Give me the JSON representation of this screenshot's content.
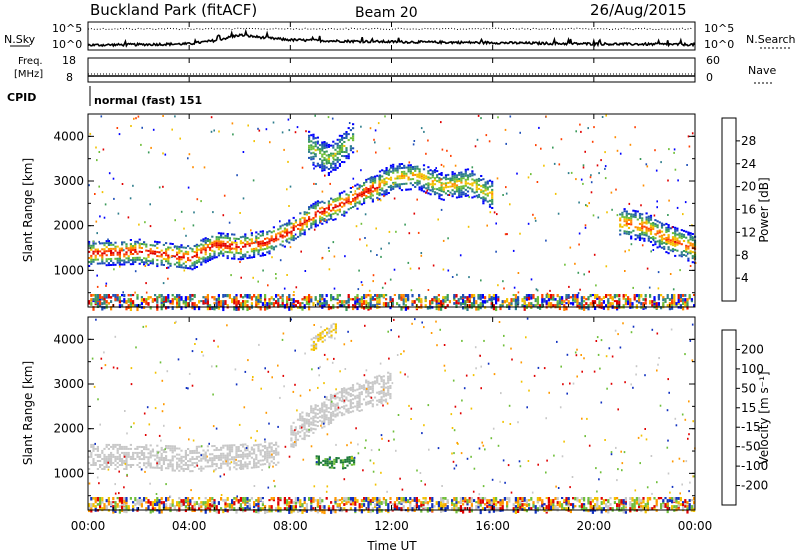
{
  "header": {
    "station": "Buckland Park (fitACF)",
    "beam": "Beam 20",
    "date": "26/Aug/2015"
  },
  "noise_panel": {
    "left_label": "N.Sky",
    "right_label": "N.Search",
    "left_ticks": [
      "10^5",
      "10^0"
    ],
    "right_ticks": [
      "10^5",
      "10^0"
    ]
  },
  "freq_panel": {
    "left_label_line1": "Freq.",
    "left_label_line2": "[MHz]",
    "right_label": "Nave",
    "left_ticks": [
      "18",
      "8"
    ],
    "right_ticks": [
      "60",
      "0"
    ]
  },
  "cpid": {
    "label": "CPID",
    "mode": "normal (fast) 151"
  },
  "x_axis": {
    "label": "Time UT",
    "ticks": [
      "00:00",
      "04:00",
      "08:00",
      "12:00",
      "16:00",
      "20:00",
      "00:00"
    ]
  },
  "power_panel": {
    "ylabel": "Slant Range [km]",
    "yticks": [
      "4000",
      "3000",
      "2000",
      "1000"
    ],
    "colorbar_label": "Power [dB]",
    "colorbar_ticks": [
      "28",
      "24",
      "20",
      "16",
      "12",
      "8",
      "4"
    ]
  },
  "velocity_panel": {
    "ylabel": "Slant Range [km]",
    "yticks": [
      "4000",
      "3000",
      "2000",
      "1000"
    ],
    "colorbar_label": "Velocity [m s⁻¹]",
    "colorbar_ticks": [
      "200",
      "100",
      "50",
      "15",
      "-15",
      "-50",
      "-100",
      "-200"
    ]
  },
  "colors": {
    "power_scale": [
      "#0000ff",
      "#1f4fb8",
      "#2e7d8c",
      "#3a9a5a",
      "#6fbf3a",
      "#f2c200",
      "#ff8c00",
      "#ff4000",
      "#e00000"
    ],
    "velocity_scale": [
      "#e00000",
      "#ff4000",
      "#ff9900",
      "#f2c200",
      "#c8c8c8",
      "#c8c8c8",
      "#6fbf3a",
      "#1f7a3a",
      "#2e4fb8",
      "#1030c0"
    ]
  },
  "chart_data": [
    {
      "type": "line",
      "title": "Buckland Park (fitACF)",
      "xlabel": "",
      "ylabel": "N.Sky",
      "y_scale": "log",
      "ylim": [
        1,
        100000
      ],
      "x": [
        "00:00",
        "02:00",
        "04:00",
        "05:00",
        "06:00",
        "07:00",
        "08:00",
        "10:00",
        "12:00",
        "14:00",
        "16:00",
        "18:00",
        "20:00",
        "22:00",
        "24:00"
      ],
      "series": [
        {
          "name": "N.Sky",
          "values": [
            3,
            4,
            6,
            40,
            1000,
            200,
            60,
            30,
            20,
            15,
            12,
            8,
            6,
            5,
            4
          ]
        },
        {
          "name": "N.Search",
          "values": [
            30000,
            30000,
            30000,
            30000,
            30000,
            30000,
            30000,
            30000,
            30000,
            30000,
            30000,
            30000,
            30000,
            30000,
            30000
          ]
        }
      ]
    },
    {
      "type": "line",
      "ylabel": "Freq. [MHz]",
      "ylim": [
        8,
        18
      ],
      "x": [
        "00:00",
        "24:00"
      ],
      "series": [
        {
          "name": "Freq.",
          "values": [
            10,
            10
          ]
        },
        {
          "name": "Nave",
          "values": [
            12,
            12
          ]
        }
      ]
    },
    {
      "type": "heatmap",
      "title": "Power [dB]",
      "xlabel": "Time UT",
      "ylabel": "Slant Range [km]",
      "xlim": [
        0,
        24
      ],
      "ylim": [
        180,
        4500
      ],
      "color_range": [
        0,
        30
      ],
      "features": [
        {
          "x": [
            0,
            2,
            4,
            5,
            6,
            7,
            8,
            9,
            10,
            11,
            11.5
          ],
          "y": [
            1400,
            1450,
            1300,
            1600,
            1550,
            1650,
            1900,
            2300,
            2500,
            2800,
            2900
          ],
          "peak_db": 26
        },
        {
          "x": [
            11.5,
            12,
            13,
            14,
            15,
            16
          ],
          "y": [
            2950,
            3100,
            3150,
            2900,
            3000,
            2700
          ],
          "peak_db": 18
        },
        {
          "x": [
            21,
            22,
            23,
            24
          ],
          "y": [
            2100,
            2000,
            1700,
            1500
          ],
          "peak_db": 22
        },
        {
          "x": [
            8.7,
            9.5,
            10.5
          ],
          "y": [
            3800,
            3500,
            4000
          ],
          "peak_db": 14
        }
      ]
    },
    {
      "type": "heatmap",
      "title": "Velocity [m s⁻¹]",
      "xlabel": "Time UT",
      "ylabel": "Slant Range [km]",
      "xlim": [
        0,
        24
      ],
      "ylim": [
        180,
        4500
      ],
      "color_range": [
        -250,
        250
      ],
      "features": [
        {
          "x": [
            0,
            2,
            4,
            6,
            7.5
          ],
          "y": [
            1400,
            1400,
            1350,
            1400,
            1500
          ],
          "velocity": 0
        },
        {
          "x": [
            8,
            9,
            10,
            11,
            12
          ],
          "y": [
            1900,
            2300,
            2600,
            2800,
            3000
          ],
          "velocity": 0
        },
        {
          "x": [
            8.8,
            9.3,
            9.8
          ],
          "y": [
            3900,
            4100,
            4300
          ],
          "velocity": -60
        },
        {
          "x": [
            9,
            10,
            10.5
          ],
          "y": [
            1300,
            1250,
            1300
          ],
          "velocity": 120
        }
      ]
    }
  ]
}
